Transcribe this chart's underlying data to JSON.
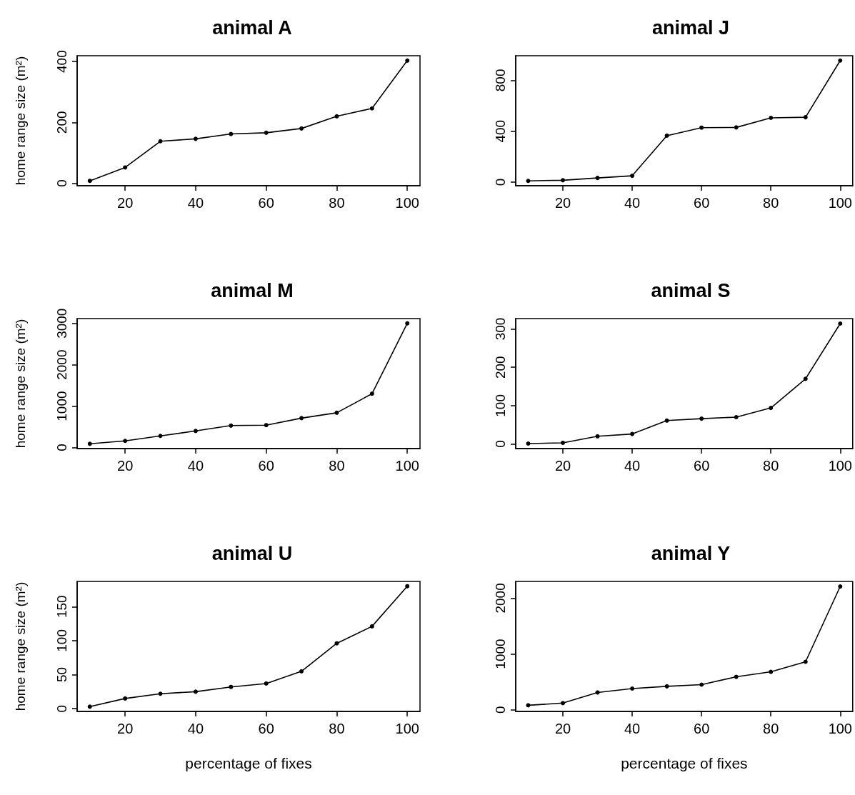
{
  "chart_data": [
    {
      "type": "line",
      "title": "animal A",
      "ylabel": "home range size (m²)",
      "x": [
        10,
        20,
        30,
        40,
        50,
        60,
        70,
        80,
        90,
        100
      ],
      "values": [
        8,
        52,
        138,
        146,
        162,
        166,
        180,
        220,
        246,
        403
      ],
      "color": "#000000",
      "xlim": [
        6.4,
        103.6
      ],
      "xticks": [
        20,
        40,
        60,
        80,
        100
      ],
      "ylim": [
        -8,
        419
      ],
      "yticks": [
        0,
        200,
        400
      ],
      "marker": "circle",
      "line_style": "solid",
      "grid": false
    },
    {
      "type": "line",
      "title": "animal J",
      "x": [
        10,
        20,
        30,
        40,
        50,
        60,
        70,
        80,
        90,
        100
      ],
      "values": [
        10,
        15,
        33,
        50,
        365,
        428,
        430,
        505,
        510,
        955
      ],
      "color": "#000000",
      "xlim": [
        6.4,
        103.6
      ],
      "xticks": [
        20,
        40,
        60,
        80,
        100
      ],
      "ylim": [
        -28,
        993
      ],
      "yticks": [
        0,
        400,
        800
      ],
      "marker": "circle",
      "line_style": "solid",
      "grid": false
    },
    {
      "type": "line",
      "title": "animal M",
      "ylabel": "home range size (m²)",
      "x": [
        10,
        20,
        30,
        40,
        50,
        60,
        70,
        80,
        90,
        100
      ],
      "values": [
        90,
        160,
        280,
        400,
        530,
        540,
        710,
        840,
        1300,
        3000
      ],
      "color": "#000000",
      "xlim": [
        6.4,
        103.6
      ],
      "xticks": [
        20,
        40,
        60,
        80,
        100
      ],
      "ylim": [
        -26,
        3116
      ],
      "yticks": [
        0,
        1000,
        2000,
        3000
      ],
      "marker": "circle",
      "line_style": "solid",
      "grid": false
    },
    {
      "type": "line",
      "title": "animal S",
      "x": [
        10,
        20,
        30,
        40,
        50,
        60,
        70,
        80,
        90,
        100
      ],
      "values": [
        1,
        3,
        20,
        26,
        61,
        66,
        70,
        94,
        170,
        314
      ],
      "color": "#000000",
      "xlim": [
        6.4,
        103.6
      ],
      "xticks": [
        20,
        40,
        60,
        80,
        100
      ],
      "ylim": [
        -12,
        327
      ],
      "yticks": [
        0,
        100,
        200,
        300
      ],
      "marker": "circle",
      "line_style": "solid",
      "grid": false
    },
    {
      "type": "line",
      "title": "animal U",
      "ylabel": "home range size (m²)",
      "xlabel": "percentage of fixes",
      "x": [
        10,
        20,
        30,
        40,
        50,
        60,
        70,
        80,
        90,
        100
      ],
      "values": [
        3,
        15,
        22,
        25,
        32,
        37,
        55,
        96,
        121,
        180
      ],
      "color": "#000000",
      "xlim": [
        6.4,
        103.6
      ],
      "xticks": [
        20,
        40,
        60,
        80,
        100
      ],
      "ylim": [
        -4,
        187
      ],
      "yticks": [
        0,
        50,
        100,
        150
      ],
      "marker": "circle",
      "line_style": "solid",
      "grid": false
    },
    {
      "type": "line",
      "title": "animal Y",
      "xlabel": "percentage of fixes",
      "x": [
        10,
        20,
        30,
        40,
        50,
        60,
        70,
        80,
        90,
        100
      ],
      "values": [
        80,
        120,
        310,
        380,
        420,
        450,
        590,
        680,
        860,
        2210
      ],
      "color": "#000000",
      "xlim": [
        6.4,
        103.6
      ],
      "xticks": [
        20,
        40,
        60,
        80,
        100
      ],
      "ylim": [
        -30,
        2300
      ],
      "yticks": [
        0,
        1000,
        2000
      ],
      "marker": "circle",
      "line_style": "solid",
      "grid": false
    }
  ]
}
